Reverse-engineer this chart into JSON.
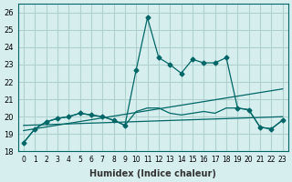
{
  "title": "",
  "xlabel": "Humidex (Indice chaleur)",
  "ylabel": "",
  "bg_color": "#d6eeee",
  "grid_color": "#b0d0d0",
  "line_color": "#006666",
  "xlim": [
    -0.5,
    23.5
  ],
  "ylim": [
    18,
    26.5
  ],
  "yticks": [
    18,
    19,
    20,
    21,
    22,
    23,
    24,
    25,
    26
  ],
  "xticks": [
    0,
    1,
    2,
    3,
    4,
    5,
    6,
    7,
    8,
    9,
    10,
    11,
    12,
    13,
    14,
    15,
    16,
    17,
    18,
    19,
    20,
    21,
    22,
    23
  ],
  "x_labels": [
    "0",
    "1",
    "2",
    "3",
    "4",
    "5",
    "6",
    "7",
    "8",
    "9",
    "10",
    "11",
    "12",
    "13",
    "14",
    "15",
    "16",
    "17",
    "18",
    "19",
    "20",
    "21",
    "22",
    "23"
  ],
  "series1": [
    18.5,
    19.3,
    19.7,
    19.9,
    20.0,
    20.2,
    20.1,
    20.0,
    19.8,
    19.5,
    22.7,
    25.7,
    23.4,
    23.0,
    22.5,
    23.3,
    23.1,
    23.1,
    23.4,
    20.5,
    20.4,
    19.4,
    19.3,
    19.8
  ],
  "series2_x": [
    0,
    23
  ],
  "series2_y": [
    19.2,
    21.6
  ],
  "series3_x": [
    0,
    23
  ],
  "series3_y": [
    19.5,
    20.0
  ],
  "series4": [
    18.5,
    19.3,
    19.7,
    19.9,
    20.0,
    20.2,
    20.1,
    20.0,
    19.8,
    19.5,
    20.3,
    20.5,
    20.5,
    20.2,
    20.1,
    20.2,
    20.3,
    20.2,
    20.5,
    20.5,
    20.4,
    19.4,
    19.3,
    19.8
  ]
}
